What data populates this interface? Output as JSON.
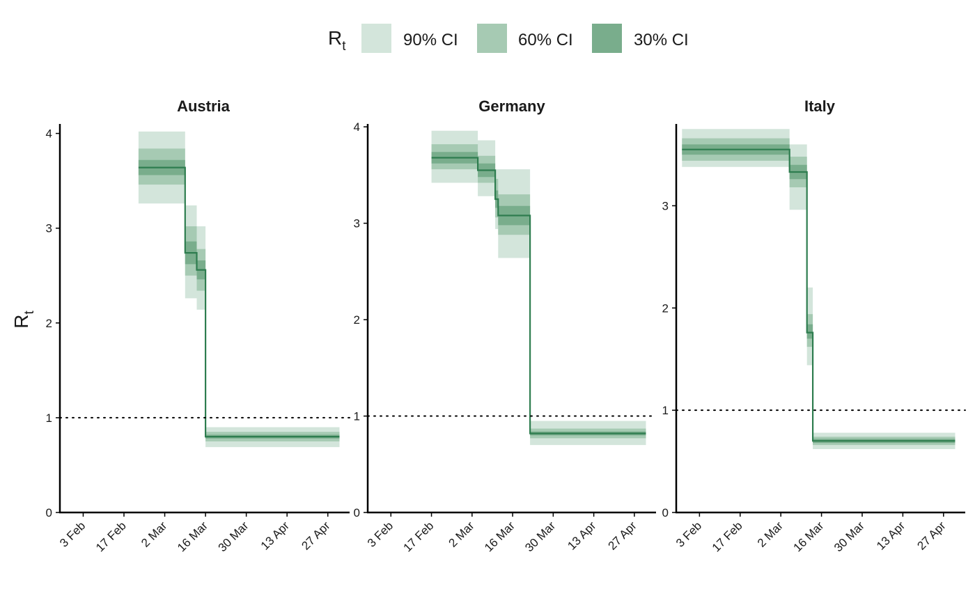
{
  "legend": {
    "title_main": "R",
    "title_sub": "t",
    "items": [
      {
        "label": "90% CI",
        "color": "#d3e5db"
      },
      {
        "label": "60% CI",
        "color": "#a6cab3"
      },
      {
        "label": "30% CI",
        "color": "#79ad8c"
      }
    ]
  },
  "y_axis_label": {
    "main": "R",
    "sub": "t"
  },
  "colors": {
    "median_line": "#2e7d4f",
    "reference_line": "#000000",
    "axis": "#000000"
  },
  "chart_data": [
    {
      "type": "area",
      "title": "Austria",
      "x_ticks": [
        "3 Feb",
        "17 Feb",
        "2 Mar",
        "16 Mar",
        "30 Mar",
        "13 Apr",
        "27 Apr"
      ],
      "x_tick_dates": [
        "2020-02-03",
        "2020-02-17",
        "2020-03-02",
        "2020-03-16",
        "2020-03-30",
        "2020-04-13",
        "2020-04-27"
      ],
      "xlim": [
        "2020-01-26",
        "2020-05-04"
      ],
      "ylim": [
        0,
        4.1
      ],
      "y_ticks": [
        0,
        1,
        2,
        3,
        4
      ],
      "reference_line": 1,
      "series": [
        {
          "x": "2020-02-22",
          "median": 3.64,
          "ci30": [
            3.56,
            3.72
          ],
          "ci60": [
            3.46,
            3.84
          ],
          "ci90": [
            3.26,
            4.02
          ]
        },
        {
          "x": "2020-03-08",
          "median": 3.64,
          "ci30": [
            3.56,
            3.72
          ],
          "ci60": [
            3.46,
            3.84
          ],
          "ci90": [
            3.26,
            4.02
          ]
        },
        {
          "x": "2020-03-09",
          "median": 2.74,
          "ci30": [
            2.62,
            2.86
          ],
          "ci60": [
            2.5,
            3.02
          ],
          "ci90": [
            2.26,
            3.24
          ]
        },
        {
          "x": "2020-03-12",
          "median": 2.74,
          "ci30": [
            2.62,
            2.86
          ],
          "ci60": [
            2.5,
            3.02
          ],
          "ci90": [
            2.26,
            3.24
          ]
        },
        {
          "x": "2020-03-13",
          "median": 2.56,
          "ci30": [
            2.46,
            2.66
          ],
          "ci60": [
            2.34,
            2.78
          ],
          "ci90": [
            2.14,
            3.02
          ]
        },
        {
          "x": "2020-03-14",
          "median": 2.56,
          "ci30": [
            2.46,
            2.66
          ],
          "ci60": [
            2.34,
            2.78
          ],
          "ci90": [
            2.14,
            3.02
          ]
        },
        {
          "x": "2020-03-16",
          "median": 0.8,
          "ci30": [
            0.78,
            0.82
          ],
          "ci60": [
            0.75,
            0.85
          ],
          "ci90": [
            0.69,
            0.9
          ]
        },
        {
          "x": "2020-05-01",
          "median": 0.8,
          "ci30": [
            0.78,
            0.82
          ],
          "ci60": [
            0.75,
            0.85
          ],
          "ci90": [
            0.69,
            0.9
          ]
        }
      ]
    },
    {
      "type": "area",
      "title": "Germany",
      "x_ticks": [
        "3 Feb",
        "17 Feb",
        "2 Mar",
        "16 Mar",
        "30 Mar",
        "13 Apr",
        "27 Apr"
      ],
      "x_tick_dates": [
        "2020-02-03",
        "2020-02-17",
        "2020-03-02",
        "2020-03-16",
        "2020-03-30",
        "2020-04-13",
        "2020-04-27"
      ],
      "xlim": [
        "2020-01-26",
        "2020-05-04"
      ],
      "ylim": [
        0,
        4.03
      ],
      "y_ticks": [
        0,
        1,
        2,
        3,
        4
      ],
      "reference_line": 1,
      "series": [
        {
          "x": "2020-02-17",
          "median": 3.68,
          "ci30": [
            3.62,
            3.74
          ],
          "ci60": [
            3.56,
            3.82
          ],
          "ci90": [
            3.42,
            3.96
          ]
        },
        {
          "x": "2020-03-03",
          "median": 3.68,
          "ci30": [
            3.62,
            3.74
          ],
          "ci60": [
            3.56,
            3.82
          ],
          "ci90": [
            3.42,
            3.96
          ]
        },
        {
          "x": "2020-03-04",
          "median": 3.55,
          "ci30": [
            3.48,
            3.62
          ],
          "ci60": [
            3.42,
            3.7
          ],
          "ci90": [
            3.28,
            3.86
          ]
        },
        {
          "x": "2020-03-09",
          "median": 3.55,
          "ci30": [
            3.48,
            3.62
          ],
          "ci60": [
            3.42,
            3.7
          ],
          "ci90": [
            3.28,
            3.86
          ]
        },
        {
          "x": "2020-03-10",
          "median": 3.25,
          "ci30": [
            3.16,
            3.34
          ],
          "ci60": [
            3.06,
            3.46
          ],
          "ci90": [
            2.94,
            3.56
          ]
        },
        {
          "x": "2020-03-11",
          "median": 3.08,
          "ci30": [
            2.98,
            3.18
          ],
          "ci60": [
            2.88,
            3.3
          ],
          "ci90": [
            2.64,
            3.56
          ]
        },
        {
          "x": "2020-03-21",
          "median": 3.08,
          "ci30": [
            2.98,
            3.18
          ],
          "ci60": [
            2.88,
            3.3
          ],
          "ci90": [
            2.64,
            3.56
          ]
        },
        {
          "x": "2020-03-22",
          "median": 0.82,
          "ci30": [
            0.8,
            0.84
          ],
          "ci60": [
            0.77,
            0.87
          ],
          "ci90": [
            0.7,
            0.95
          ]
        },
        {
          "x": "2020-05-01",
          "median": 0.82,
          "ci30": [
            0.8,
            0.84
          ],
          "ci60": [
            0.77,
            0.87
          ],
          "ci90": [
            0.7,
            0.95
          ]
        }
      ]
    },
    {
      "type": "area",
      "title": "Italy",
      "x_ticks": [
        "3 Feb",
        "17 Feb",
        "2 Mar",
        "16 Mar",
        "30 Mar",
        "13 Apr",
        "27 Apr"
      ],
      "x_tick_dates": [
        "2020-02-03",
        "2020-02-17",
        "2020-03-02",
        "2020-03-16",
        "2020-03-30",
        "2020-04-13",
        "2020-04-27"
      ],
      "xlim": [
        "2020-01-26",
        "2020-05-04"
      ],
      "ylim": [
        0,
        3.8
      ],
      "y_ticks": [
        0,
        1,
        2,
        3
      ],
      "reference_line": 1,
      "series": [
        {
          "x": "2020-01-28",
          "median": 3.55,
          "ci30": [
            3.5,
            3.6
          ],
          "ci60": [
            3.44,
            3.66
          ],
          "ci90": [
            3.38,
            3.75
          ]
        },
        {
          "x": "2020-03-04",
          "median": 3.55,
          "ci30": [
            3.5,
            3.6
          ],
          "ci60": [
            3.44,
            3.66
          ],
          "ci90": [
            3.38,
            3.75
          ]
        },
        {
          "x": "2020-03-05",
          "median": 3.33,
          "ci30": [
            3.26,
            3.4
          ],
          "ci60": [
            3.18,
            3.48
          ],
          "ci90": [
            2.96,
            3.6
          ]
        },
        {
          "x": "2020-03-10",
          "median": 3.33,
          "ci30": [
            3.26,
            3.4
          ],
          "ci60": [
            3.18,
            3.48
          ],
          "ci90": [
            2.96,
            3.6
          ]
        },
        {
          "x": "2020-03-11",
          "median": 1.76,
          "ci30": [
            1.7,
            1.84
          ],
          "ci60": [
            1.62,
            1.94
          ],
          "ci90": [
            1.44,
            2.2
          ]
        },
        {
          "x": "2020-03-12",
          "median": 1.76,
          "ci30": [
            1.7,
            1.84
          ],
          "ci60": [
            1.62,
            1.94
          ],
          "ci90": [
            1.44,
            2.2
          ]
        },
        {
          "x": "2020-03-13",
          "median": 0.7,
          "ci30": [
            0.68,
            0.72
          ],
          "ci60": [
            0.66,
            0.74
          ],
          "ci90": [
            0.62,
            0.78
          ]
        },
        {
          "x": "2020-05-01",
          "median": 0.7,
          "ci30": [
            0.68,
            0.72
          ],
          "ci60": [
            0.66,
            0.74
          ],
          "ci90": [
            0.62,
            0.78
          ]
        }
      ]
    }
  ]
}
